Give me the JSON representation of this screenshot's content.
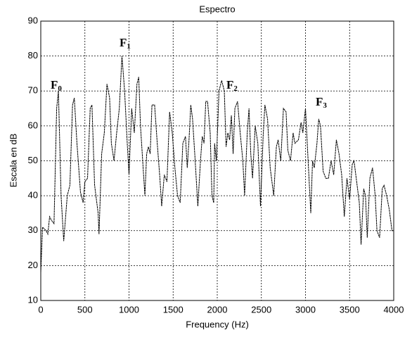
{
  "chart_data": {
    "type": "line",
    "title": "Espectro",
    "x_label": "Frequency (Hz)",
    "y_label": "Escala en dB",
    "xlim": [
      0,
      4000
    ],
    "xticks": [
      0,
      500,
      1000,
      1500,
      2000,
      2500,
      3000,
      3500,
      4000
    ],
    "ylim": [
      10,
      90
    ],
    "yticks": [
      10,
      20,
      30,
      40,
      50,
      60,
      70,
      80,
      90
    ],
    "grid": true,
    "annotations": [
      {
        "text": "F",
        "subscript": "0"
      },
      {
        "text": "F",
        "subscript": "1"
      },
      {
        "text": "F",
        "subscript": "2"
      },
      {
        "text": "F",
        "subscript": "3"
      }
    ],
    "series": [
      {
        "color": "#000000",
        "x": [
          0,
          20,
          60,
          80,
          100,
          120,
          150,
          180,
          200,
          230,
          260,
          300,
          330,
          360,
          380,
          410,
          450,
          480,
          500,
          530,
          560,
          580,
          610,
          650,
          660,
          690,
          720,
          750,
          780,
          800,
          830,
          860,
          890,
          920,
          950,
          980,
          1000,
          1030,
          1060,
          1090,
          1110,
          1130,
          1160,
          1180,
          1200,
          1220,
          1240,
          1260,
          1290,
          1320,
          1350,
          1370,
          1400,
          1430,
          1460,
          1490,
          1520,
          1550,
          1580,
          1610,
          1640,
          1660,
          1680,
          1700,
          1720,
          1750,
          1780,
          1810,
          1830,
          1850,
          1870,
          1890,
          1920,
          1940,
          1960,
          1970,
          1990,
          2020,
          2050,
          2080,
          2100,
          2120,
          2140,
          2160,
          2180,
          2200,
          2230,
          2260,
          2290,
          2310,
          2340,
          2360,
          2380,
          2400,
          2430,
          2460,
          2490,
          2520,
          2540,
          2570,
          2600,
          2640,
          2670,
          2690,
          2720,
          2750,
          2780,
          2800,
          2830,
          2860,
          2880,
          2920,
          2950,
          2970,
          3000,
          3030,
          3060,
          3080,
          3100,
          3130,
          3150,
          3170,
          3200,
          3230,
          3260,
          3290,
          3320,
          3350,
          3380,
          3410,
          3440,
          3470,
          3500,
          3530,
          3550,
          3580,
          3610,
          3630,
          3660,
          3680,
          3700,
          3730,
          3760,
          3790,
          3810,
          3840,
          3870,
          3890,
          3920,
          3950,
          3980,
          4000
        ],
        "values": [
          18,
          31,
          30,
          29,
          34,
          33,
          32,
          65,
          70,
          40,
          27,
          40,
          43,
          66,
          68,
          55,
          41,
          38,
          44,
          45,
          65,
          66,
          43,
          35,
          29,
          52,
          58,
          72,
          68,
          55,
          50,
          58,
          65,
          80,
          70,
          55,
          46,
          65,
          58,
          72,
          74,
          60,
          48,
          40,
          52,
          54,
          52,
          66,
          66,
          55,
          45,
          37,
          46,
          44,
          64,
          58,
          48,
          40,
          38,
          55,
          57,
          48,
          56,
          66,
          62,
          50,
          37,
          50,
          57,
          55,
          67,
          67,
          58,
          40,
          38,
          55,
          50,
          70,
          73,
          70,
          54,
          58,
          56,
          63,
          52,
          65,
          67,
          58,
          50,
          40,
          58,
          65,
          52,
          45,
          60,
          55,
          37,
          57,
          66,
          62,
          48,
          40,
          54,
          56,
          50,
          65,
          64,
          53,
          50,
          58,
          55,
          56,
          61,
          58,
          65,
          50,
          35,
          50,
          48,
          55,
          62,
          60,
          47,
          45,
          45,
          50,
          46,
          56,
          52,
          46,
          34,
          45,
          39,
          49,
          50,
          44,
          38,
          26,
          42,
          40,
          28,
          45,
          48,
          40,
          30,
          28,
          42,
          43,
          40,
          36,
          30,
          30
        ]
      }
    ]
  }
}
